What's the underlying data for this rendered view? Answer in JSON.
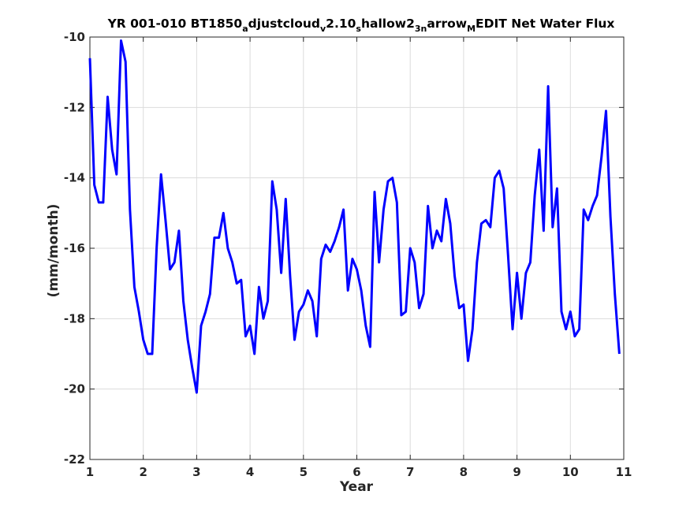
{
  "chart_data": {
    "type": "line",
    "title_parts": [
      {
        "text": "YR 001-010 BT1850",
        "sub": false
      },
      {
        "text": "a",
        "sub": true
      },
      {
        "text": "djustcloud",
        "sub": false
      },
      {
        "text": "v",
        "sub": true
      },
      {
        "text": "2.10",
        "sub": false
      },
      {
        "text": "s",
        "sub": true
      },
      {
        "text": "hallow2",
        "sub": false
      },
      {
        "text": "3",
        "sub": true
      },
      {
        "text": "n",
        "sub": true
      },
      {
        "text": "arrow",
        "sub": false
      },
      {
        "text": "M",
        "sub": true
      },
      {
        "text": "EDIT Net Water Flux",
        "sub": false
      }
    ],
    "xlabel": "Year",
    "ylabel": "(mm/month)",
    "xlim": [
      1,
      11
    ],
    "ylim": [
      -22,
      -10
    ],
    "xticks": [
      1,
      2,
      3,
      4,
      5,
      6,
      7,
      8,
      9,
      10,
      11
    ],
    "yticks": [
      -22,
      -20,
      -18,
      -16,
      -14,
      -12,
      -10
    ],
    "grid": true,
    "line_color": "#0000ff",
    "series": [
      {
        "x": [
          1.0,
          1.083,
          1.167,
          1.25,
          1.333,
          1.417,
          1.5,
          1.583,
          1.667,
          1.75,
          1.833,
          1.917,
          2.0,
          2.083,
          2.167,
          2.25,
          2.333,
          2.417,
          2.5,
          2.583,
          2.667,
          2.75,
          2.833,
          2.917,
          3.0,
          3.083,
          3.167,
          3.25,
          3.333,
          3.417,
          3.5,
          3.583,
          3.667,
          3.75,
          3.833,
          3.917,
          4.0,
          4.083,
          4.167,
          4.25,
          4.333,
          4.417,
          4.5,
          4.583,
          4.667,
          4.75,
          4.833,
          4.917,
          5.0,
          5.083,
          5.167,
          5.25,
          5.333,
          5.417,
          5.5,
          5.583,
          5.667,
          5.75,
          5.833,
          5.917,
          6.0,
          6.083,
          6.167,
          6.25,
          6.333,
          6.417,
          6.5,
          6.583,
          6.667,
          6.75,
          6.833,
          6.917,
          7.0,
          7.083,
          7.167,
          7.25,
          7.333,
          7.417,
          7.5,
          7.583,
          7.667,
          7.75,
          7.833,
          7.917,
          8.0,
          8.083,
          8.167,
          8.25,
          8.333,
          8.417,
          8.5,
          8.583,
          8.667,
          8.75,
          8.833,
          8.917,
          9.0,
          9.083,
          9.167,
          9.25,
          9.333,
          9.417,
          9.5,
          9.583,
          9.667,
          9.75,
          9.833,
          9.917,
          10.0,
          10.083,
          10.167,
          10.25,
          10.333,
          10.417,
          10.5,
          10.583,
          10.667,
          10.75,
          10.833,
          10.917
        ],
        "y": [
          -10.6,
          -14.2,
          -14.7,
          -14.7,
          -11.7,
          -13.2,
          -13.9,
          -10.1,
          -10.7,
          -14.9,
          -17.1,
          -17.8,
          -18.6,
          -19.0,
          -19.0,
          -16.0,
          -13.9,
          -15.2,
          -16.6,
          -16.4,
          -15.5,
          -17.5,
          -18.6,
          -19.4,
          -20.1,
          -18.2,
          -17.8,
          -17.3,
          -15.7,
          -15.7,
          -15.0,
          -16.0,
          -16.4,
          -17.0,
          -16.9,
          -18.5,
          -18.2,
          -19.0,
          -17.1,
          -18.0,
          -17.5,
          -14.1,
          -14.9,
          -16.7,
          -14.6,
          -16.8,
          -18.6,
          -17.8,
          -17.6,
          -17.2,
          -17.5,
          -18.5,
          -16.3,
          -15.9,
          -16.1,
          -15.8,
          -15.4,
          -14.9,
          -17.2,
          -16.3,
          -16.6,
          -17.2,
          -18.2,
          -18.8,
          -14.4,
          -16.4,
          -14.9,
          -14.1,
          -14.0,
          -14.7,
          -17.9,
          -17.8,
          -16.0,
          -16.4,
          -17.7,
          -17.3,
          -14.8,
          -16.0,
          -15.5,
          -15.8,
          -14.6,
          -15.3,
          -16.8,
          -17.7,
          -17.6,
          -19.2,
          -18.3,
          -16.4,
          -15.3,
          -15.2,
          -15.4,
          -14.0,
          -13.8,
          -14.3,
          -16.2,
          -18.3,
          -16.7,
          -18.0,
          -16.7,
          -16.4,
          -14.5,
          -13.2,
          -15.5,
          -11.4,
          -15.4,
          -14.3,
          -17.8,
          -18.3,
          -17.8,
          -18.5,
          -18.3,
          -14.9,
          -15.2,
          -14.8,
          -14.5,
          -13.4,
          -12.1,
          -15.1,
          -17.3,
          -19.0
        ]
      }
    ]
  }
}
